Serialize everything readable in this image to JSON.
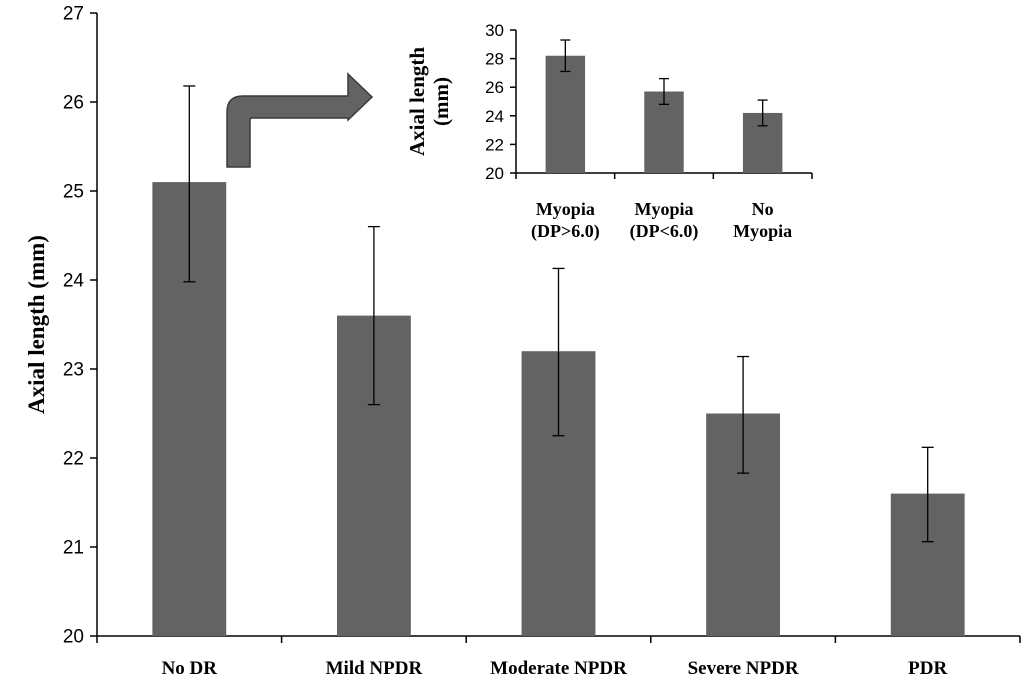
{
  "colors": {
    "bar": "#636363",
    "axis": "#000000",
    "arrow": "#636363"
  },
  "chart_data": [
    {
      "type": "bar",
      "title": "",
      "xlabel": "",
      "ylabel": "Axial length (mm)",
      "ylim": [
        20,
        27
      ],
      "yticks": [
        20,
        21,
        22,
        23,
        24,
        25,
        26,
        27
      ],
      "categories": [
        "No DR",
        "Mild NPDR",
        "Moderate NPDR",
        "Severe NPDR",
        "PDR"
      ],
      "values": [
        25.1,
        23.6,
        23.2,
        22.5,
        21.6
      ],
      "error_upper": [
        26.18,
        24.6,
        24.13,
        23.14,
        22.12
      ],
      "error_lower": [
        23.98,
        22.6,
        22.25,
        21.83,
        21.06
      ],
      "grid": false,
      "legend": "none"
    },
    {
      "type": "bar",
      "title": "",
      "xlabel": "",
      "ylabel_lines": [
        "Axial length",
        "(mm)"
      ],
      "ylim": [
        20,
        30
      ],
      "yticks": [
        20,
        22,
        24,
        26,
        28,
        30
      ],
      "categories": [
        [
          "Myopia",
          "(DP>6.0)"
        ],
        [
          "Myopia",
          "(DP<6.0)"
        ],
        [
          "No",
          "Myopia"
        ]
      ],
      "values": [
        28.2,
        25.7,
        24.2
      ],
      "error_upper": [
        29.3,
        26.6,
        25.1
      ],
      "error_lower": [
        27.1,
        24.8,
        23.3
      ],
      "grid": false,
      "legend": "none",
      "placement": "inset-top-right"
    }
  ]
}
